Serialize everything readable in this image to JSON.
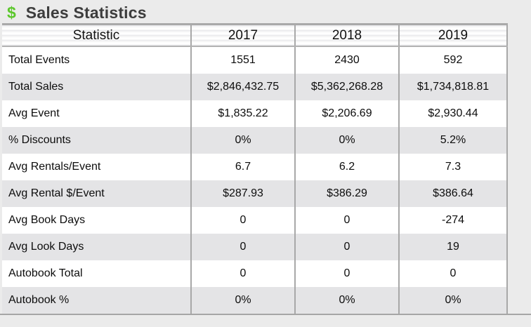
{
  "title": {
    "icon": "$",
    "text": "Sales Statistics"
  },
  "table": {
    "columns": [
      "Statistic",
      "2017",
      "2018",
      "2019"
    ],
    "rows": [
      {
        "label": "Total Events",
        "values": [
          "1551",
          "2430",
          "592"
        ]
      },
      {
        "label": "Total Sales",
        "values": [
          "$2,846,432.75",
          "$5,362,268.28",
          "$1,734,818.81"
        ]
      },
      {
        "label": "Avg Event",
        "values": [
          "$1,835.22",
          "$2,206.69",
          "$2,930.44"
        ]
      },
      {
        "label": "% Discounts",
        "values": [
          "0%",
          "0%",
          "5.2%"
        ]
      },
      {
        "label": "Avg Rentals/Event",
        "values": [
          "6.7",
          "6.2",
          "7.3"
        ]
      },
      {
        "label": "Avg Rental $/Event",
        "values": [
          "$287.93",
          "$386.29",
          "$386.64"
        ]
      },
      {
        "label": "Avg Book Days",
        "values": [
          "0",
          "0",
          "-274"
        ]
      },
      {
        "label": "Avg Look Days",
        "values": [
          "0",
          "0",
          "19"
        ]
      },
      {
        "label": "Autobook Total",
        "values": [
          "0",
          "0",
          "0"
        ]
      },
      {
        "label": "Autobook %",
        "values": [
          "0%",
          "0%",
          "0%"
        ]
      }
    ]
  },
  "colors": {
    "accent_green": "#5cc72c",
    "alt_row_bg": "#e4e4e6",
    "border_gray": "#a8a8a8",
    "page_bg": "#ebebeb"
  }
}
